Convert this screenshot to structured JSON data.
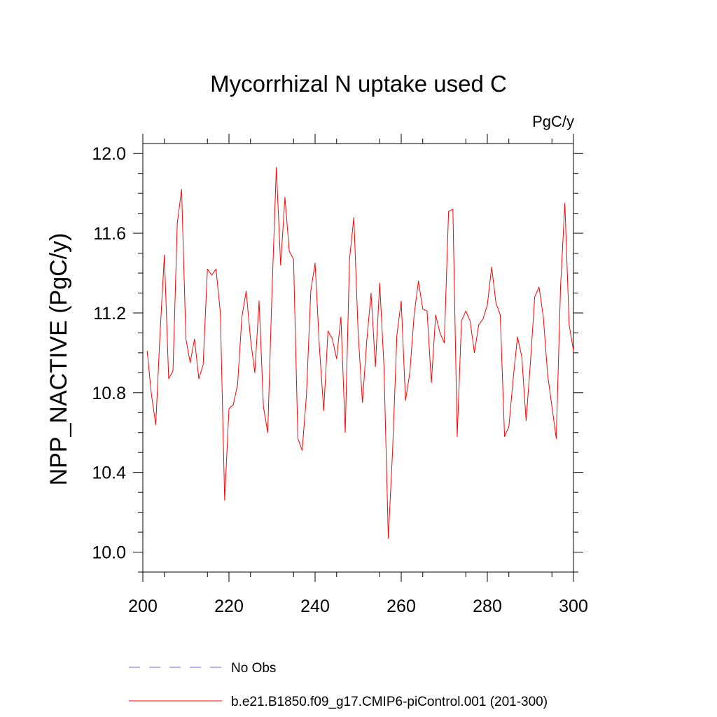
{
  "chart_data": {
    "type": "line",
    "title": "Mycorrhizal N uptake used C",
    "units_label": "PgC/y",
    "ylabel": "NPP_NACTIVE  (PgC/y)",
    "xlabel": "",
    "xlim": [
      200,
      300
    ],
    "ylim": [
      9.9,
      12.05
    ],
    "x_ticks": [
      200,
      220,
      240,
      260,
      280,
      300
    ],
    "x_tick_labels": [
      "200",
      "220",
      "240",
      "260",
      "280",
      "300"
    ],
    "y_ticks": [
      10.0,
      10.4,
      10.8,
      11.2,
      11.6,
      12.0
    ],
    "y_tick_labels": [
      "10.0",
      "10.4",
      "10.8",
      "11.2",
      "11.6",
      "12.0"
    ],
    "grid": false,
    "legend": "bottom",
    "series": [
      {
        "name": "b.e21.B1850.f09_g17.CMIP6-piControl.001 (201-300)",
        "color": "#ff0000",
        "style": "solid",
        "x": [
          201,
          202,
          203,
          204,
          205,
          206,
          207,
          208,
          209,
          210,
          211,
          212,
          213,
          214,
          215,
          216,
          217,
          218,
          219,
          220,
          221,
          222,
          223,
          224,
          225,
          226,
          227,
          228,
          229,
          230,
          231,
          232,
          233,
          234,
          235,
          236,
          237,
          238,
          239,
          240,
          241,
          242,
          243,
          244,
          245,
          246,
          247,
          248,
          249,
          250,
          251,
          252,
          253,
          254,
          255,
          256,
          257,
          258,
          259,
          260,
          261,
          262,
          263,
          264,
          265,
          266,
          267,
          268,
          269,
          270,
          271,
          272,
          273,
          274,
          275,
          276,
          277,
          278,
          279,
          280,
          281,
          282,
          283,
          284,
          285,
          286,
          287,
          288,
          289,
          290,
          291,
          292,
          293,
          294,
          295,
          296,
          297,
          298,
          299,
          300
        ],
        "values": [
          11.01,
          10.79,
          10.64,
          11.1,
          11.49,
          10.87,
          10.91,
          11.65,
          11.82,
          11.07,
          10.95,
          11.07,
          10.87,
          10.94,
          11.42,
          11.39,
          11.42,
          11.2,
          10.26,
          10.72,
          10.74,
          10.84,
          11.18,
          11.31,
          11.07,
          10.9,
          11.26,
          10.73,
          10.6,
          11.31,
          11.93,
          11.44,
          11.78,
          11.51,
          11.47,
          10.57,
          10.51,
          10.79,
          11.31,
          11.45,
          11.03,
          10.71,
          11.11,
          11.07,
          10.97,
          11.18,
          10.6,
          11.47,
          11.68,
          11.1,
          10.75,
          11.06,
          11.3,
          10.93,
          11.35,
          10.93,
          10.07,
          10.51,
          11.09,
          11.26,
          10.76,
          10.9,
          11.19,
          11.36,
          11.22,
          11.21,
          10.85,
          11.19,
          11.1,
          11.05,
          11.71,
          11.72,
          10.58,
          11.16,
          11.21,
          11.16,
          11.0,
          11.14,
          11.17,
          11.24,
          11.43,
          11.25,
          11.19,
          10.58,
          10.63,
          10.87,
          11.08,
          10.98,
          10.66,
          10.95,
          11.28,
          11.33,
          11.18,
          10.89,
          10.73,
          10.57,
          11.33,
          11.75,
          11.14,
          11.01
        ]
      },
      {
        "name": "No Obs",
        "color": "#6f5fd0",
        "style": "dashed",
        "x": [],
        "values": []
      }
    ]
  }
}
